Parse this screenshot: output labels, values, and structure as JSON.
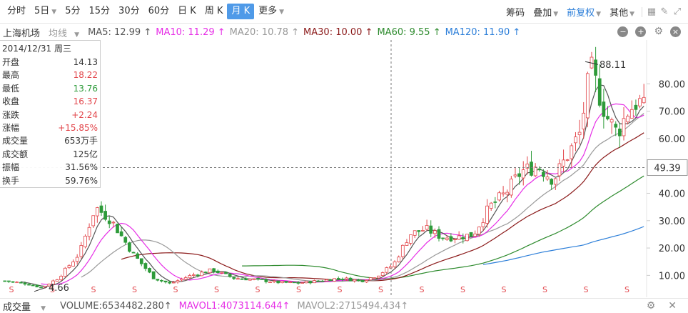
{
  "toolbar": {
    "tabs": [
      {
        "label": "分时",
        "caret": false,
        "active": false
      },
      {
        "label": "5日",
        "caret": true,
        "active": false
      },
      {
        "label": "5分",
        "caret": false,
        "active": false
      },
      {
        "label": "15分",
        "caret": false,
        "active": false
      },
      {
        "label": "30分",
        "caret": false,
        "active": false
      },
      {
        "label": "60分",
        "caret": false,
        "active": false
      },
      {
        "label": "日 K",
        "caret": false,
        "active": false
      },
      {
        "label": "周 K",
        "caret": false,
        "active": false
      },
      {
        "label": "月 K",
        "caret": false,
        "active": true
      },
      {
        "label": "更多",
        "caret": true,
        "active": false
      }
    ],
    "chip": "筹码",
    "overlay": "叠加",
    "adjust": "前复权",
    "other": "其他",
    "icons": [
      "grid-icon",
      "pen-icon",
      "fullscreen-icon"
    ]
  },
  "ma_bar": {
    "stock": "上海机场",
    "line_type": "均线",
    "ma5": "MA5: 12.99 ↑",
    "ma10": "MA10: 11.29 ↑",
    "ma20": "MA20: 10.78 ↑",
    "ma30": "MA30: 10.00 ↑",
    "ma60": "MA60: 9.55 ↑",
    "ma120": "MA120: 11.90 ↑"
  },
  "info": {
    "date": "2014/12/31 周三",
    "rows": [
      {
        "label": "开盘",
        "value": "14.13",
        "color": "normal"
      },
      {
        "label": "最高",
        "value": "18.22",
        "color": "red"
      },
      {
        "label": "最低",
        "value": "13.76",
        "color": "green"
      },
      {
        "label": "收盘",
        "value": "16.37",
        "color": "red"
      },
      {
        "label": "涨跌",
        "value": "+2.24",
        "color": "red"
      },
      {
        "label": "涨幅",
        "value": "+15.85%",
        "color": "red"
      },
      {
        "label": "成交量",
        "value": "653万手",
        "color": "normal"
      },
      {
        "label": "成交额",
        "value": "125亿",
        "color": "normal"
      },
      {
        "label": "振幅",
        "value": "31.56%",
        "color": "normal"
      },
      {
        "label": "换手",
        "value": "59.76%",
        "color": "normal"
      }
    ]
  },
  "chart_data": {
    "type": "candlestick",
    "y_ticks": [
      "80.00",
      "70.00",
      "60.00",
      "50.00",
      "40.00",
      "30.00",
      "20.00",
      "10.00"
    ],
    "y_tick_values": [
      80,
      70,
      60,
      50,
      40,
      30,
      20,
      10
    ],
    "ylim": [
      2.0,
      96.0
    ],
    "crosshair_price": "49.39",
    "crosshair_value": 49.39,
    "max_label": "88.11",
    "max_value": 88.11,
    "min_label": "4.66",
    "min_value": 4.66,
    "bars": 160,
    "s_marker": "S",
    "ma_colors": {
      "ma5": "#555555",
      "ma10": "#e62ee6",
      "ma20": "#999999",
      "ma30": "#8b1a1a",
      "ma60": "#2e8b2e",
      "ma120": "#2d7fd9",
      "ma250": "#f0a030"
    },
    "up_color": "#e2454a",
    "down_color": "#2e9b3a"
  },
  "volume_bar": {
    "title": "成交量",
    "volume": "VOLUME:6534482.280↑",
    "mavol1": "MAVOL1:4073114.644↑",
    "mavol2": "MAVOL2:2715494.434↑",
    "icons": [
      "settings-icon",
      "close-icon"
    ]
  }
}
